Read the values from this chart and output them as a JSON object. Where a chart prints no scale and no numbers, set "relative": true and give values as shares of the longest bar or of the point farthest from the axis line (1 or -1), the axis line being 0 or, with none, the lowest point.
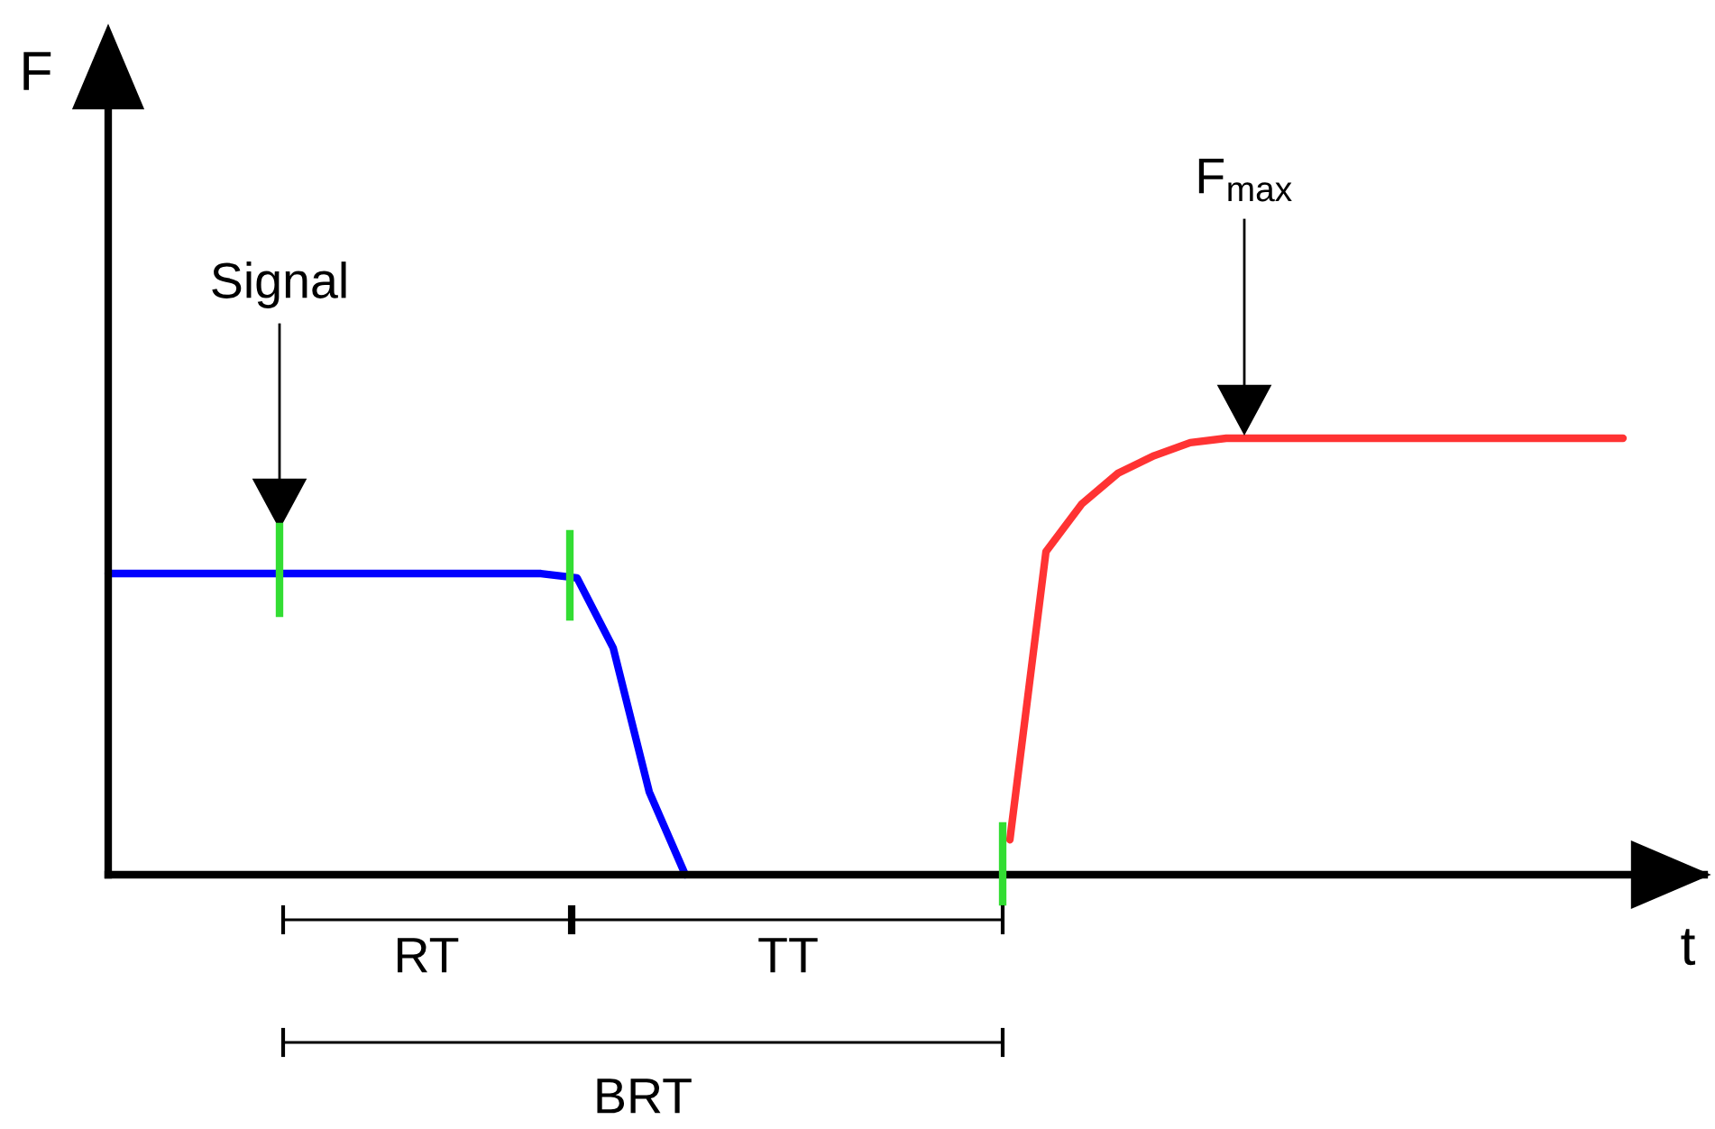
{
  "chart_data": {
    "type": "line",
    "relative": true,
    "tick_labels": false,
    "grid": false,
    "legend": false,
    "marker": "none",
    "line_style": "solid",
    "xlabel": "t",
    "categories": [
      null,
      null,
      null,
      null,
      null,
      null,
      null,
      null,
      null,
      null,
      null,
      null,
      null,
      null,
      null,
      null,
      null,
      null,
      null,
      null,
      null,
      null,
      null,
      null,
      null,
      null,
      null,
      null,
      null,
      null,
      null,
      null,
      null,
      null,
      null,
      null,
      null,
      null,
      null,
      null,
      null,
      null,
      null
    ],
    "series": [
      {
        "color": "#0000ff",
        "values": [
          0.69,
          0.69,
          0.69,
          0.69,
          0.69,
          0.69,
          0.69,
          0.69,
          0.69,
          0.69,
          0.69,
          0.69,
          0.69,
          0.68,
          0.52,
          0.19,
          0,
          null,
          null,
          null,
          null,
          null,
          null,
          null,
          null,
          null,
          null,
          null,
          null,
          null,
          null,
          null,
          null,
          null,
          null,
          null,
          null,
          null,
          null,
          null,
          null,
          null,
          null
        ]
      },
      {
        "color": "#ff3333",
        "values": [
          null,
          null,
          null,
          null,
          null,
          null,
          null,
          null,
          null,
          null,
          null,
          null,
          null,
          null,
          null,
          null,
          null,
          null,
          null,
          null,
          null,
          null,
          null,
          null,
          null,
          0.08,
          0.74,
          0.85,
          0.92,
          0.96,
          0.99,
          1,
          1,
          1,
          1,
          1,
          1,
          1,
          1,
          1,
          1,
          1,
          1
        ]
      }
    ],
    "annotations": [
      "F",
      "Signal",
      "F$_{max}$",
      "RT",
      "TT",
      "BRT"
    ]
  }
}
